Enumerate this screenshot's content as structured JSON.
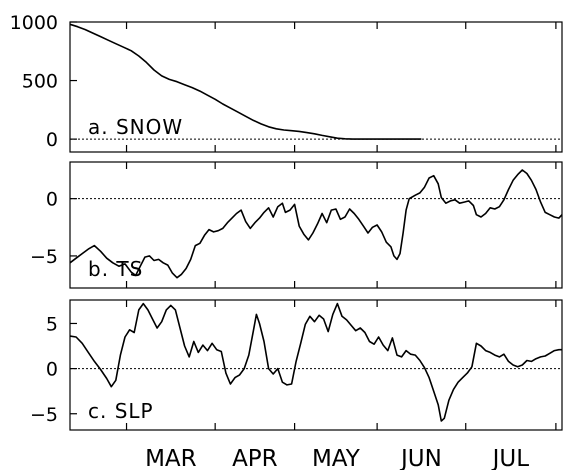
{
  "chart_data": [
    {
      "type": "line",
      "panel_label": "a. SNOW",
      "x_range_days": [
        0,
        160
      ],
      "ylim": [
        -110,
        1000
      ],
      "yticks": [
        0,
        500,
        1000
      ],
      "zero_line": true,
      "points": [
        [
          0,
          980
        ],
        [
          5,
          960
        ],
        [
          10,
          935
        ],
        [
          15,
          905
        ],
        [
          20,
          875
        ],
        [
          25,
          845
        ],
        [
          30,
          815
        ],
        [
          35,
          785
        ],
        [
          40,
          755
        ],
        [
          45,
          710
        ],
        [
          50,
          655
        ],
        [
          55,
          590
        ],
        [
          60,
          540
        ],
        [
          65,
          510
        ],
        [
          70,
          490
        ],
        [
          75,
          465
        ],
        [
          80,
          440
        ],
        [
          85,
          410
        ],
        [
          90,
          375
        ],
        [
          95,
          340
        ],
        [
          100,
          300
        ],
        [
          105,
          265
        ],
        [
          110,
          230
        ],
        [
          115,
          195
        ],
        [
          120,
          160
        ],
        [
          125,
          130
        ],
        [
          130,
          105
        ],
        [
          135,
          88
        ],
        [
          140,
          78
        ],
        [
          145,
          72
        ],
        [
          150,
          66
        ],
        [
          155,
          56
        ],
        [
          160,
          45
        ],
        [
          165,
          32
        ],
        [
          170,
          20
        ],
        [
          175,
          8
        ],
        [
          180,
          3
        ],
        [
          185,
          0
        ],
        [
          230,
          0
        ]
      ]
    },
    {
      "type": "line",
      "panel_label": "b. TS",
      "x_range_days": [
        0,
        160
      ],
      "ylim": [
        -7.8,
        3.2
      ],
      "yticks": [
        -5,
        0
      ],
      "zero_line": true,
      "points": [
        [
          0,
          -5.6
        ],
        [
          4,
          -5.2
        ],
        [
          8,
          -4.8
        ],
        [
          12,
          -4.4
        ],
        [
          16,
          -4.1
        ],
        [
          20,
          -4.6
        ],
        [
          24,
          -5.2
        ],
        [
          28,
          -5.6
        ],
        [
          32,
          -5.9
        ],
        [
          36,
          -5.7
        ],
        [
          40,
          -6.4
        ],
        [
          43,
          -6.7
        ],
        [
          46,
          -5.9
        ],
        [
          49,
          -5.1
        ],
        [
          52,
          -5.0
        ],
        [
          55,
          -5.4
        ],
        [
          58,
          -5.3
        ],
        [
          61,
          -5.6
        ],
        [
          64,
          -5.8
        ],
        [
          67,
          -6.5
        ],
        [
          70,
          -6.9
        ],
        [
          73,
          -6.6
        ],
        [
          76,
          -6.1
        ],
        [
          79,
          -5.3
        ],
        [
          82,
          -4.1
        ],
        [
          85,
          -3.9
        ],
        [
          88,
          -3.2
        ],
        [
          91,
          -2.7
        ],
        [
          94,
          -2.9
        ],
        [
          97,
          -2.8
        ],
        [
          100,
          -2.6
        ],
        [
          103,
          -2.1
        ],
        [
          106,
          -1.7
        ],
        [
          109,
          -1.3
        ],
        [
          112,
          -1.0
        ],
        [
          115,
          -2.0
        ],
        [
          118,
          -2.6
        ],
        [
          121,
          -2.1
        ],
        [
          124,
          -1.7
        ],
        [
          127,
          -1.2
        ],
        [
          130,
          -0.8
        ],
        [
          133,
          -1.6
        ],
        [
          136,
          -0.7
        ],
        [
          139,
          -0.4
        ],
        [
          141,
          -1.2
        ],
        [
          144,
          -1.0
        ],
        [
          147,
          -0.5
        ],
        [
          150,
          -2.4
        ],
        [
          153,
          -3.1
        ],
        [
          156,
          -3.6
        ],
        [
          159,
          -3.0
        ],
        [
          162,
          -2.2
        ],
        [
          165,
          -1.3
        ],
        [
          168,
          -2.1
        ],
        [
          171,
          -1.0
        ],
        [
          174,
          -0.9
        ],
        [
          177,
          -1.8
        ],
        [
          180,
          -1.6
        ],
        [
          183,
          -0.9
        ],
        [
          186,
          -1.3
        ],
        [
          189,
          -1.8
        ],
        [
          192,
          -2.4
        ],
        [
          195,
          -3.0
        ],
        [
          198,
          -2.5
        ],
        [
          201,
          -2.3
        ],
        [
          204,
          -2.9
        ],
        [
          207,
          -3.8
        ],
        [
          210,
          -4.2
        ],
        [
          212,
          -5.0
        ],
        [
          214,
          -5.3
        ],
        [
          216,
          -4.8
        ],
        [
          218,
          -3.0
        ],
        [
          220,
          -1.0
        ],
        [
          222,
          0.0
        ],
        [
          226,
          0.3
        ],
        [
          229,
          0.5
        ],
        [
          232,
          1.0
        ],
        [
          235,
          1.8
        ],
        [
          238,
          2.0
        ],
        [
          241,
          1.3
        ],
        [
          243,
          0.1
        ],
        [
          246,
          -0.4
        ],
        [
          249,
          -0.2
        ],
        [
          252,
          -0.1
        ],
        [
          255,
          -0.4
        ],
        [
          258,
          -0.3
        ],
        [
          261,
          -0.2
        ],
        [
          264,
          -0.6
        ],
        [
          266,
          -1.4
        ],
        [
          269,
          -1.6
        ],
        [
          272,
          -1.3
        ],
        [
          275,
          -0.8
        ],
        [
          278,
          -0.9
        ],
        [
          281,
          -0.7
        ],
        [
          284,
          -0.1
        ],
        [
          287,
          0.8
        ],
        [
          290,
          1.6
        ],
        [
          293,
          2.1
        ],
        [
          296,
          2.5
        ],
        [
          299,
          2.2
        ],
        [
          302,
          1.6
        ],
        [
          305,
          0.8
        ],
        [
          308,
          -0.3
        ],
        [
          311,
          -1.2
        ],
        [
          314,
          -1.4
        ],
        [
          317,
          -1.6
        ],
        [
          320,
          -1.7
        ],
        [
          322,
          -1.4
        ]
      ]
    },
    {
      "type": "line",
      "panel_label": "c. SLP",
      "x_range_days": [
        0,
        160
      ],
      "ylim": [
        -6.8,
        7.6
      ],
      "yticks": [
        -5,
        0,
        5
      ],
      "zero_line": true,
      "points": [
        [
          0,
          3.6
        ],
        [
          4,
          3.5
        ],
        [
          8,
          2.8
        ],
        [
          12,
          1.8
        ],
        [
          16,
          0.8
        ],
        [
          20,
          -0.1
        ],
        [
          24,
          -1.1
        ],
        [
          27,
          -2.0
        ],
        [
          30,
          -1.3
        ],
        [
          33,
          1.5
        ],
        [
          36,
          3.5
        ],
        [
          39,
          4.3
        ],
        [
          42,
          4.0
        ],
        [
          45,
          6.5
        ],
        [
          48,
          7.2
        ],
        [
          51,
          6.5
        ],
        [
          54,
          5.5
        ],
        [
          57,
          4.5
        ],
        [
          60,
          5.2
        ],
        [
          63,
          6.5
        ],
        [
          66,
          7.0
        ],
        [
          69,
          6.5
        ],
        [
          72,
          4.5
        ],
        [
          75,
          2.5
        ],
        [
          78,
          1.3
        ],
        [
          81,
          3.0
        ],
        [
          84,
          1.8
        ],
        [
          87,
          2.6
        ],
        [
          90,
          2.0
        ],
        [
          93,
          2.8
        ],
        [
          96,
          2.1
        ],
        [
          99,
          1.9
        ],
        [
          102,
          -0.5
        ],
        [
          105,
          -1.7
        ],
        [
          108,
          -1.0
        ],
        [
          111,
          -0.7
        ],
        [
          114,
          0.0
        ],
        [
          117,
          1.5
        ],
        [
          120,
          4.2
        ],
        [
          122,
          6.0
        ],
        [
          124,
          5.0
        ],
        [
          127,
          3.0
        ],
        [
          130,
          0.0
        ],
        [
          133,
          -0.6
        ],
        [
          136,
          0.0
        ],
        [
          139,
          -1.5
        ],
        [
          142,
          -1.8
        ],
        [
          145,
          -1.7
        ],
        [
          148,
          0.8
        ],
        [
          151,
          2.8
        ],
        [
          154,
          4.9
        ],
        [
          157,
          5.8
        ],
        [
          160,
          5.2
        ],
        [
          163,
          5.9
        ],
        [
          166,
          5.5
        ],
        [
          169,
          4.1
        ],
        [
          172,
          6.0
        ],
        [
          175,
          7.2
        ],
        [
          178,
          5.8
        ],
        [
          181,
          5.4
        ],
        [
          184,
          4.8
        ],
        [
          187,
          4.2
        ],
        [
          190,
          4.5
        ],
        [
          193,
          4.0
        ],
        [
          196,
          3.0
        ],
        [
          199,
          2.7
        ],
        [
          202,
          3.5
        ],
        [
          205,
          2.6
        ],
        [
          208,
          2.0
        ],
        [
          211,
          3.4
        ],
        [
          214,
          1.5
        ],
        [
          217,
          1.3
        ],
        [
          220,
          2.0
        ],
        [
          223,
          1.6
        ],
        [
          226,
          1.5
        ],
        [
          229,
          0.9
        ],
        [
          232,
          0.1
        ],
        [
          235,
          -1.0
        ],
        [
          238,
          -2.5
        ],
        [
          241,
          -4.0
        ],
        [
          243,
          -5.8
        ],
        [
          245,
          -5.5
        ],
        [
          248,
          -3.5
        ],
        [
          251,
          -2.3
        ],
        [
          254,
          -1.5
        ],
        [
          257,
          -1.0
        ],
        [
          260,
          -0.5
        ],
        [
          263,
          0.2
        ],
        [
          266,
          2.8
        ],
        [
          269,
          2.5
        ],
        [
          272,
          2.0
        ],
        [
          275,
          1.8
        ],
        [
          278,
          1.5
        ],
        [
          281,
          1.3
        ],
        [
          284,
          1.6
        ],
        [
          287,
          0.8
        ],
        [
          290,
          0.4
        ],
        [
          293,
          0.2
        ],
        [
          296,
          0.4
        ],
        [
          299,
          0.9
        ],
        [
          302,
          0.8
        ],
        [
          305,
          1.1
        ],
        [
          308,
          1.3
        ],
        [
          311,
          1.4
        ],
        [
          314,
          1.7
        ],
        [
          317,
          2.0
        ],
        [
          320,
          2.1
        ],
        [
          322,
          2.1
        ]
      ]
    }
  ],
  "x_axis": {
    "months": [
      "MAR",
      "APR",
      "MAY",
      "JUN",
      "JUL"
    ],
    "x_range": [
      0,
      322
    ],
    "month_ticks": [
      37,
      95,
      147,
      201,
      259,
      318
    ]
  }
}
